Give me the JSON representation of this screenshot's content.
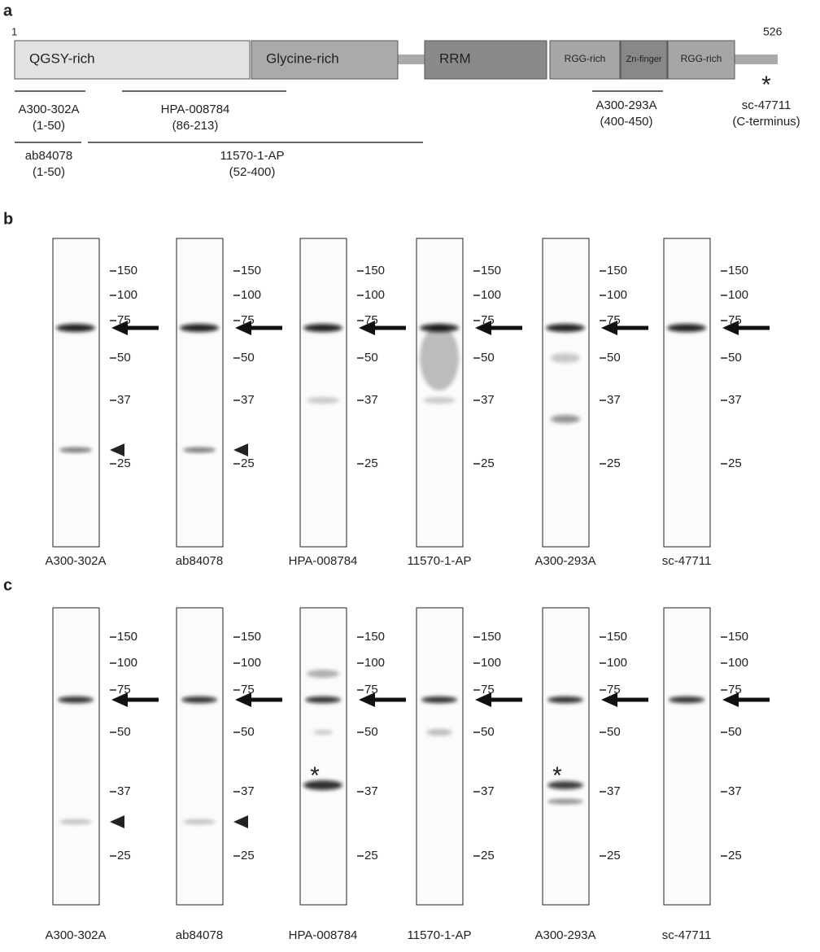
{
  "panel_a": {
    "label": "a",
    "start": "1",
    "end": "526",
    "c_term_mark": "*",
    "domains": [
      "QGSY-rich",
      "Glycine-rich",
      "RRM",
      "RGG-rich",
      "Zn-finger",
      "RGG-rich"
    ],
    "antibodies": [
      {
        "name": "A300-302A",
        "range": "(1-50)"
      },
      {
        "name": "HPA-008784",
        "range": "(86-213)"
      },
      {
        "name": "ab84078",
        "range": "(1-50)"
      },
      {
        "name": "11570-1-AP",
        "range": "(52-400)"
      },
      {
        "name": "A300-293A",
        "range": "(400-450)"
      },
      {
        "name": "sc-47711",
        "range": "(C-terminus)"
      }
    ]
  },
  "panel_b": {
    "label": "b",
    "lanes": [
      {
        "name": "A300-302A",
        "markers": [
          "150",
          "100",
          "75",
          "50",
          "37",
          "25"
        ]
      },
      {
        "name": "ab84078",
        "markers": [
          "150",
          "100",
          "75",
          "50",
          "37",
          "25"
        ]
      },
      {
        "name": "HPA-008784",
        "markers": [
          "150",
          "100",
          "75",
          "50",
          "37",
          "25"
        ]
      },
      {
        "name": "11570-1-AP",
        "markers": [
          "150",
          "100",
          "75",
          "50",
          "37",
          "25"
        ]
      },
      {
        "name": "A300-293A",
        "markers": [
          "150",
          "100",
          "75",
          "50",
          "37",
          "25"
        ]
      },
      {
        "name": "sc-47711",
        "markers": [
          "150",
          "100",
          "75",
          "50",
          "37",
          "25"
        ]
      }
    ]
  },
  "panel_c": {
    "label": "c",
    "asterisk": "*",
    "lanes": [
      {
        "name": "A300-302A",
        "markers": [
          "150",
          "100",
          "75",
          "50",
          "37",
          "25"
        ]
      },
      {
        "name": "ab84078",
        "markers": [
          "150",
          "100",
          "75",
          "50",
          "37",
          "25"
        ]
      },
      {
        "name": "HPA-008784",
        "markers": [
          "150",
          "100",
          "75",
          "50",
          "37",
          "25"
        ]
      },
      {
        "name": "11570-1-AP",
        "markers": [
          "150",
          "100",
          "75",
          "50",
          "37",
          "25"
        ]
      },
      {
        "name": "A300-293A",
        "markers": [
          "150",
          "100",
          "75",
          "50",
          "37",
          "25"
        ]
      },
      {
        "name": "sc-47711",
        "markers": [
          "150",
          "100",
          "75",
          "50",
          "37",
          "25"
        ]
      }
    ]
  }
}
